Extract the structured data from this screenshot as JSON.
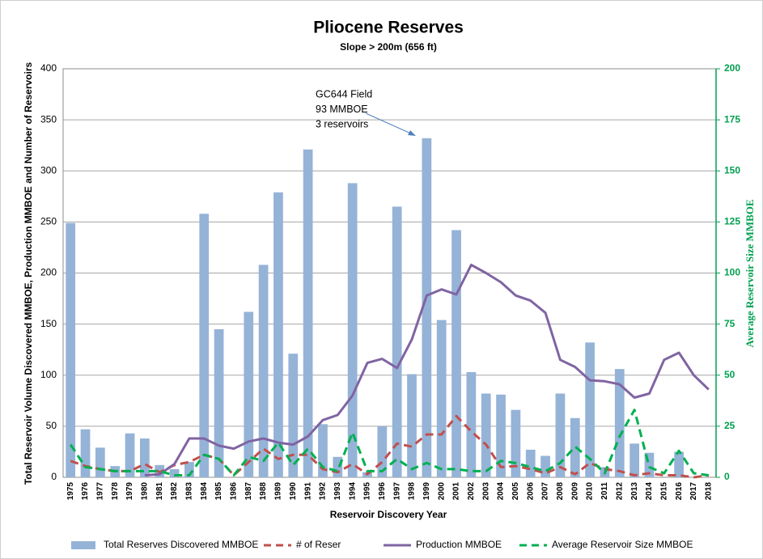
{
  "chart_data": {
    "type": "bar",
    "title": "Pliocene Reserves",
    "subtitle": "Slope > 200m (656 ft)",
    "xlabel": "Reservoir Discovery Year",
    "ylabel": "Total Reservoir Volume Discovered MMBOE, Production MMBOE and Number of Reservoirs",
    "y2label": "Average Reservoir Size MMBOE",
    "categories": [
      "1975",
      "1976",
      "1977",
      "1978",
      "1979",
      "1980",
      "1981",
      "1982",
      "1983",
      "1984",
      "1985",
      "1986",
      "1987",
      "1988",
      "1989",
      "1990",
      "1991",
      "1992",
      "1993",
      "1994",
      "1995",
      "1996",
      "1997",
      "1998",
      "1999",
      "2000",
      "2001",
      "2002",
      "2003",
      "2004",
      "2005",
      "2006",
      "2007",
      "2008",
      "2009",
      "2010",
      "2011",
      "2012",
      "2013",
      "2014",
      "2015",
      "2016",
      "2017",
      "2018"
    ],
    "ylim": [
      0,
      400
    ],
    "yticks": [
      0,
      50,
      100,
      150,
      200,
      250,
      300,
      350,
      400
    ],
    "y2lim": [
      0,
      200
    ],
    "y2ticks": [
      0,
      25,
      50,
      75,
      100,
      125,
      150,
      175,
      200
    ],
    "grid": true,
    "legend": "bottom",
    "annotation": [
      "GC644 Field",
      "93 MMBOE",
      "3 reservoirs"
    ],
    "series": [
      {
        "name": "Total Reserves Discovered MMBOE",
        "type": "bar",
        "color": "#95b3d7",
        "values": [
          249,
          47,
          29,
          11,
          43,
          38,
          12,
          8,
          15,
          258,
          145,
          0,
          162,
          208,
          279,
          121,
          321,
          52,
          20,
          288,
          5,
          50,
          265,
          101,
          332,
          154,
          242,
          103,
          82,
          81,
          66,
          27,
          21,
          82,
          58,
          132,
          10,
          106,
          33,
          24,
          0,
          25,
          0,
          0
        ]
      },
      {
        "name": "# of Reser",
        "type": "line",
        "dash": true,
        "color": "#c0504d",
        "values": [
          16,
          11,
          8,
          6,
          6,
          13,
          5,
          12,
          15,
          22,
          18,
          2,
          15,
          28,
          18,
          22,
          22,
          8,
          5,
          13,
          3,
          15,
          33,
          30,
          42,
          42,
          60,
          45,
          32,
          10,
          11,
          8,
          4,
          10,
          3,
          14,
          8,
          6,
          2,
          4,
          2,
          2,
          0,
          2
        ]
      },
      {
        "name": "Production MMBOE",
        "type": "line",
        "dash": false,
        "color": "#8064a2",
        "values": [
          null,
          null,
          null,
          null,
          null,
          2,
          3,
          13,
          38,
          38,
          31,
          28,
          35,
          38,
          34,
          32,
          40,
          56,
          61,
          80,
          112,
          116,
          107,
          135,
          178,
          184,
          179,
          208,
          200,
          191,
          178,
          173,
          161,
          115,
          108,
          95,
          94,
          91,
          78,
          82,
          115,
          122,
          100,
          86
        ]
      },
      {
        "name": "Average Reservoir Size MMBOE",
        "type": "line",
        "dash": true,
        "axis": "y2",
        "color": "#00b050",
        "values": [
          16,
          5,
          4,
          3,
          3,
          3,
          3,
          1,
          1,
          11,
          9,
          1,
          10,
          8,
          17,
          6,
          14,
          5,
          3,
          22,
          3,
          3,
          9,
          4,
          7,
          4,
          4,
          3,
          3,
          8,
          7,
          5,
          3,
          7,
          15,
          9,
          2,
          20,
          33,
          5,
          2,
          13,
          2,
          1
        ]
      }
    ]
  }
}
